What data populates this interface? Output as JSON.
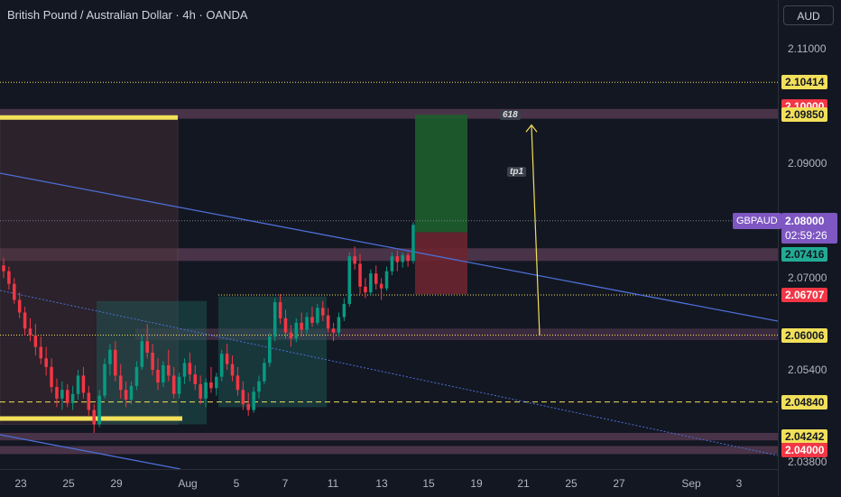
{
  "header": {
    "title": "British Pound / Australian Dollar · 4h · OANDA",
    "currency": "AUD"
  },
  "annotations": {
    "fib": "618",
    "tp": "tp1"
  },
  "symbol_tag": "GBPAUD",
  "countdown": {
    "price": "2.08000",
    "time": "02:59:26"
  },
  "colors": {
    "up": "#089981",
    "down": "#f23645",
    "yellow": "#f2e05a",
    "trend": "#4c6fd6",
    "zone": "#5c3d55"
  },
  "chart_data": {
    "type": "candlestick",
    "ylim": [
      2.0367,
      2.1185
    ],
    "y_ticks": [
      "2.11000",
      "2.09000",
      "2.07000",
      "2.05400",
      "2.03800"
    ],
    "x_ticks": [
      "23",
      "25",
      "29",
      "Aug",
      "5",
      "7",
      "11",
      "13",
      "15",
      "19",
      "21",
      "25",
      "27",
      "Sep",
      "3"
    ],
    "price_tags": [
      {
        "text": "2.10414",
        "value": 2.10414,
        "bg": "#f2e05a",
        "fg": "#131722"
      },
      {
        "text": "2.10000",
        "value": 2.1,
        "bg": "#f23645",
        "fg": "#ffffff"
      },
      {
        "text": "2.09850",
        "value": 2.0985,
        "bg": "#f2e05a",
        "fg": "#131722"
      },
      {
        "text": "2.07416",
        "value": 2.07416,
        "bg": "#22ab94",
        "fg": "#131722"
      },
      {
        "text": "2.06707",
        "value": 2.06707,
        "bg": "#f23645",
        "fg": "#ffffff"
      },
      {
        "text": "2.06006",
        "value": 2.06006,
        "bg": "#f2e05a",
        "fg": "#131722"
      },
      {
        "text": "2.04840",
        "value": 2.0484,
        "bg": "#f2e05a",
        "fg": "#131722"
      },
      {
        "text": "2.04242",
        "value": 2.04242,
        "bg": "#f2e05a",
        "fg": "#131722"
      },
      {
        "text": "2.04000",
        "value": 2.04,
        "bg": "#f23645",
        "fg": "#ffffff"
      }
    ],
    "candles": [
      [
        2.0722,
        2.0735,
        2.07,
        2.0712
      ],
      [
        2.0712,
        2.072,
        2.068,
        2.069
      ],
      [
        2.069,
        2.07,
        2.0655,
        2.0662
      ],
      [
        2.0662,
        2.0675,
        2.063,
        2.064
      ],
      [
        2.064,
        2.065,
        2.06,
        2.0612
      ],
      [
        2.0612,
        2.063,
        2.059,
        2.06
      ],
      [
        2.06,
        2.062,
        2.0565,
        2.058
      ],
      [
        2.058,
        2.0598,
        2.055,
        2.056
      ],
      [
        2.056,
        2.058,
        2.053,
        2.0545
      ],
      [
        2.0545,
        2.056,
        2.05,
        2.051
      ],
      [
        2.051,
        2.0525,
        2.0475,
        2.049
      ],
      [
        2.049,
        2.052,
        2.047,
        2.0505
      ],
      [
        2.0505,
        2.0515,
        2.0475,
        2.0482
      ],
      [
        2.0482,
        2.0512,
        2.047,
        2.0498
      ],
      [
        2.0498,
        2.054,
        2.0488,
        2.053
      ],
      [
        2.053,
        2.0545,
        2.049,
        2.05
      ],
      [
        2.05,
        2.0512,
        2.046,
        2.047
      ],
      [
        2.047,
        2.048,
        2.043,
        2.0445
      ],
      [
        2.0445,
        2.0505,
        2.044,
        2.0495
      ],
      [
        2.0495,
        2.056,
        2.049,
        2.055
      ],
      [
        2.055,
        2.0585,
        2.053,
        2.0575
      ],
      [
        2.0575,
        2.059,
        2.052,
        2.053
      ],
      [
        2.053,
        2.055,
        2.049,
        2.0505
      ],
      [
        2.0505,
        2.052,
        2.0475,
        2.0488
      ],
      [
        2.0488,
        2.052,
        2.048,
        2.0512
      ],
      [
        2.0512,
        2.0555,
        2.0505,
        2.0545
      ],
      [
        2.0545,
        2.06,
        2.054,
        2.059
      ],
      [
        2.059,
        2.062,
        2.056,
        2.057
      ],
      [
        2.057,
        2.0585,
        2.053,
        2.054
      ],
      [
        2.054,
        2.056,
        2.0505,
        2.0518
      ],
      [
        2.0518,
        2.0555,
        2.051,
        2.0548
      ],
      [
        2.0548,
        2.0575,
        2.052,
        2.053
      ],
      [
        2.053,
        2.0545,
        2.049,
        2.0498
      ],
      [
        2.0498,
        2.0535,
        2.049,
        2.0528
      ],
      [
        2.0528,
        2.056,
        2.0515,
        2.0552
      ],
      [
        2.0552,
        2.057,
        2.052,
        2.0532
      ],
      [
        2.0532,
        2.0548,
        2.0505,
        2.0515
      ],
      [
        2.0515,
        2.053,
        2.048,
        2.049
      ],
      [
        2.049,
        2.0525,
        2.0475,
        2.0518
      ],
      [
        2.0518,
        2.0545,
        2.05,
        2.0508
      ],
      [
        2.0508,
        2.0535,
        2.0495,
        2.0528
      ],
      [
        2.0528,
        2.0575,
        2.052,
        2.0568
      ],
      [
        2.0568,
        2.0585,
        2.054,
        2.055
      ],
      [
        2.055,
        2.0565,
        2.052,
        2.053
      ],
      [
        2.053,
        2.0545,
        2.0495,
        2.0505
      ],
      [
        2.0505,
        2.052,
        2.047,
        2.048
      ],
      [
        2.048,
        2.05,
        2.046,
        2.047
      ],
      [
        2.047,
        2.051,
        2.0465,
        2.0502
      ],
      [
        2.0502,
        2.053,
        2.049,
        2.052
      ],
      [
        2.052,
        2.056,
        2.0515,
        2.0552
      ],
      [
        2.0552,
        2.0605,
        2.0545,
        2.0598
      ],
      [
        2.0598,
        2.0665,
        2.059,
        2.0658
      ],
      [
        2.0658,
        2.0672,
        2.062,
        2.063
      ],
      [
        2.063,
        2.0645,
        2.0595,
        2.0605
      ],
      [
        2.0605,
        2.0618,
        2.058,
        2.0595
      ],
      [
        2.0595,
        2.063,
        2.0588,
        2.0622
      ],
      [
        2.0622,
        2.064,
        2.0598,
        2.061
      ],
      [
        2.061,
        2.064,
        2.0602,
        2.0632
      ],
      [
        2.0632,
        2.065,
        2.0615,
        2.0622
      ],
      [
        2.0622,
        2.0655,
        2.0618,
        2.0648
      ],
      [
        2.0648,
        2.066,
        2.0625,
        2.0635
      ],
      [
        2.0635,
        2.0648,
        2.0605,
        2.0612
      ],
      [
        2.0612,
        2.0622,
        2.059,
        2.0605
      ],
      [
        2.0605,
        2.064,
        2.0598,
        2.0632
      ],
      [
        2.0632,
        2.0665,
        2.0625,
        2.0655
      ],
      [
        2.0655,
        2.0745,
        2.065,
        2.0738
      ],
      [
        2.0738,
        2.0755,
        2.0715,
        2.0725
      ],
      [
        2.0725,
        2.0742,
        2.0672,
        2.0685
      ],
      [
        2.0685,
        2.07,
        2.0665,
        2.0675
      ],
      [
        2.0675,
        2.0715,
        2.067,
        2.0708
      ],
      [
        2.0708,
        2.0722,
        2.068,
        2.069
      ],
      [
        2.069,
        2.07,
        2.0662,
        2.0682
      ],
      [
        2.0682,
        2.072,
        2.0678,
        2.0712
      ],
      [
        2.0712,
        2.0745,
        2.0705,
        2.0738
      ],
      [
        2.0738,
        2.0748,
        2.0712,
        2.0728
      ],
      [
        2.0728,
        2.0745,
        2.0718,
        2.074
      ],
      [
        2.074,
        2.0745,
        2.072,
        2.073
      ],
      [
        2.073,
        2.0798,
        2.0725,
        2.0793
      ]
    ]
  }
}
